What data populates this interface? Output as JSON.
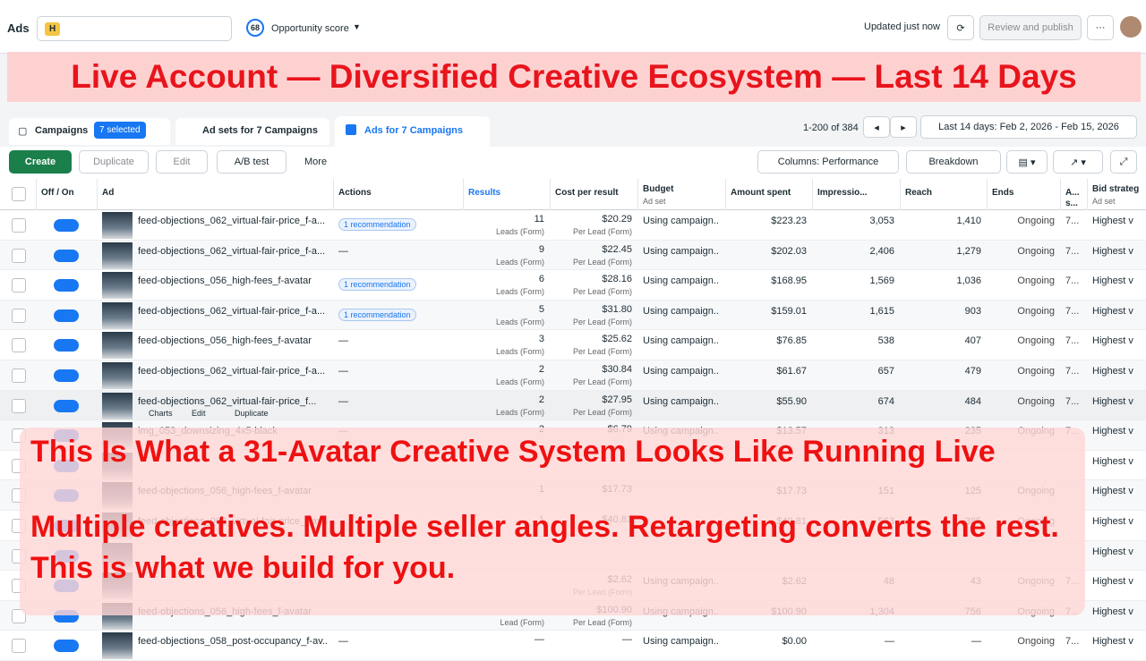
{
  "header": {
    "title": "Ads",
    "score": "68",
    "score_label": "Opportunity score",
    "status": "Updated just now",
    "publish": "Review and publish"
  },
  "banner": "Live Account — Diversified Creative Ecosystem — Last 14 Days",
  "tabs": {
    "campaigns": "Campaigns",
    "selected": "7 selected",
    "adsets": "Ad sets for 7 Campaigns",
    "ads": "Ads for 7 Campaigns"
  },
  "pagination": "1-200 of 384",
  "date_range": "Last 14 days: Feb 2, 2026 - Feb 15, 2026",
  "toolbar": {
    "create": "Create",
    "duplicate": "Duplicate",
    "edit": "Edit",
    "ab_test": "A/B test",
    "more": "More",
    "columns": "Columns: Performance",
    "breakdown": "Breakdown"
  },
  "columns": [
    {
      "label": "Off / On"
    },
    {
      "label": "Ad"
    },
    {
      "label": "Actions"
    },
    {
      "label": "Results"
    },
    {
      "label": "Cost per result"
    },
    {
      "label": "Budget",
      "sub": "Ad set"
    },
    {
      "label": "Amount spent"
    },
    {
      "label": "Impressio..."
    },
    {
      "label": "Reach"
    },
    {
      "label": "Ends"
    },
    {
      "label": "A... s..."
    },
    {
      "label": "Bid strateg",
      "sub": "Ad set"
    }
  ],
  "rows": [
    {
      "name": "feed-objections_062_virtual-fair-price_f-a...",
      "action": "1 recommendation",
      "results": "11",
      "results_sub": "Leads (Form)",
      "cost": "$20.29",
      "cost_sub": "Per Lead (Form)",
      "budget": "Using campaign...",
      "spent": "$223.23",
      "impressions": "3,053",
      "reach": "1,410",
      "ends": "Ongoing",
      "attr": "7...",
      "bid": "Highest v"
    },
    {
      "name": "feed-objections_062_virtual-fair-price_f-a...",
      "action": "—",
      "results": "9",
      "results_sub": "Leads (Form)",
      "cost": "$22.45",
      "cost_sub": "Per Lead (Form)",
      "budget": "Using campaign...",
      "spent": "$202.03",
      "impressions": "2,406",
      "reach": "1,279",
      "ends": "Ongoing",
      "attr": "7...",
      "bid": "Highest v"
    },
    {
      "name": "feed-objections_056_high-fees_f-avatar",
      "action": "1 recommendation",
      "results": "6",
      "results_sub": "Leads (Form)",
      "cost": "$28.16",
      "cost_sub": "Per Lead (Form)",
      "budget": "Using campaign...",
      "spent": "$168.95",
      "impressions": "1,569",
      "reach": "1,036",
      "ends": "Ongoing",
      "attr": "7...",
      "bid": "Highest v"
    },
    {
      "name": "feed-objections_062_virtual-fair-price_f-a...",
      "action": "1 recommendation",
      "results": "5",
      "results_sub": "Leads (Form)",
      "cost": "$31.80",
      "cost_sub": "Per Lead (Form)",
      "budget": "Using campaign...",
      "spent": "$159.01",
      "impressions": "1,615",
      "reach": "903",
      "ends": "Ongoing",
      "attr": "7...",
      "bid": "Highest v"
    },
    {
      "name": "feed-objections_056_high-fees_f-avatar",
      "action": "—",
      "results": "3",
      "results_sub": "Leads (Form)",
      "cost": "$25.62",
      "cost_sub": "Per Lead (Form)",
      "budget": "Using campaign...",
      "spent": "$76.85",
      "impressions": "538",
      "reach": "407",
      "ends": "Ongoing",
      "attr": "7...",
      "bid": "Highest v"
    },
    {
      "name": "feed-objections_062_virtual-fair-price_f-a...",
      "action": "—",
      "results": "2",
      "results_sub": "Leads (Form)",
      "cost": "$30.84",
      "cost_sub": "Per Lead (Form)",
      "budget": "Using campaign...",
      "spent": "$61.67",
      "impressions": "657",
      "reach": "479",
      "ends": "Ongoing",
      "attr": "7...",
      "bid": "Highest v"
    },
    {
      "name": "feed-objections_062_virtual-fair-price_f...",
      "hover_links": [
        "Charts",
        "Edit",
        "Duplicate"
      ],
      "action": "—",
      "results": "2",
      "results_sub": "Leads (Form)",
      "cost": "$27.95",
      "cost_sub": "Per Lead (Form)",
      "budget": "Using campaign...",
      "spent": "$55.90",
      "impressions": "674",
      "reach": "484",
      "ends": "Ongoing",
      "attr": "7...",
      "bid": "Highest v"
    },
    {
      "name": "img_053_downsizing_4x5-black",
      "action": "—",
      "results": "2",
      "cost": "$6.79",
      "budget": "Using campaign...",
      "spent": "$13.57",
      "impressions": "313",
      "reach": "235",
      "ends": "Ongoing",
      "attr": "7...",
      "bid": "Highest v"
    },
    {
      "bid": "Highest v"
    },
    {
      "name": "feed-objections_056_high-fees_f-avatar",
      "results": "1",
      "cost": "$17.73",
      "spent": "$17.73",
      "impressions": "151",
      "reach": "125",
      "ends": "Ongoing",
      "bid": "Highest v"
    },
    {
      "name": "feed-objections_062_virtual-fair-price_f-avatar",
      "results": "1",
      "cost": "$40.81",
      "spent": "$40.81",
      "impressions": "563",
      "reach": "385",
      "ends": "Ongoing",
      "bid": "Highest v"
    },
    {
      "bid": "Highest v"
    },
    {
      "cost": "$2.62",
      "cost_sub": "Per Lead (Form)",
      "budget": "Using campaign...",
      "spent": "$2.62",
      "impressions": "48",
      "reach": "43",
      "ends": "Ongoing",
      "attr": "7...",
      "bid": "Highest v"
    },
    {
      "name": "feed-objections_056_high-fees_f-avatar",
      "results_sub": "Lead (Form)",
      "cost": "$100.90",
      "cost_sub": "Per Lead (Form)",
      "budget": "Using campaign...",
      "spent": "$100.90",
      "impressions": "1,304",
      "reach": "756",
      "ends": "Ongoing",
      "attr": "7...",
      "bid": "Highest v"
    },
    {
      "name": "feed-objections_058_post-occupancy_f-av...",
      "action": "—",
      "results": "—",
      "cost": "—",
      "budget": "Using campaign...",
      "spent": "$0.00",
      "impressions": "—",
      "reach": "—",
      "ends": "Ongoing",
      "attr": "7...",
      "bid": "Highest v"
    }
  ],
  "overlay": {
    "headline": "This Is What a 31-Avatar Creative System Looks Like Running Live",
    "body": "Multiple creatives. Multiple seller angles. Retargeting converts the rest. This is what we build for you."
  }
}
